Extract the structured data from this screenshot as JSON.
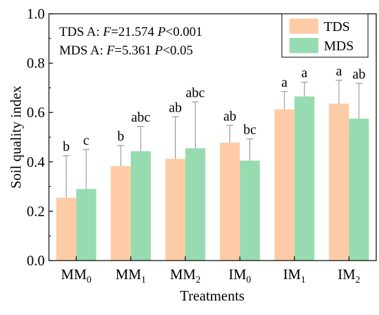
{
  "chart_data": {
    "type": "bar",
    "xlabel": "Treatments",
    "ylabel": "Soil quality index",
    "ylim": [
      0,
      1.0
    ],
    "yticks": [
      "0.0",
      "0.2",
      "0.4",
      "0.6",
      "0.8",
      "1.0"
    ],
    "categories": [
      {
        "base": "MM",
        "sub": "0"
      },
      {
        "base": "MM",
        "sub": "1"
      },
      {
        "base": "MM",
        "sub": "2"
      },
      {
        "base": "IM",
        "sub": "0"
      },
      {
        "base": "IM",
        "sub": "1"
      },
      {
        "base": "IM",
        "sub": "2"
      }
    ],
    "series": [
      {
        "name": "TDS",
        "color": "#FDCCA6",
        "values": [
          0.255,
          0.383,
          0.412,
          0.478,
          0.613,
          0.636
        ],
        "errors": [
          0.17,
          0.083,
          0.17,
          0.07,
          0.072,
          0.095
        ],
        "letters": [
          "b",
          "b",
          "ab",
          "ab",
          "a",
          "a"
        ]
      },
      {
        "name": "MDS",
        "color": "#97DCB0",
        "values": [
          0.29,
          0.443,
          0.455,
          0.405,
          0.665,
          0.575
        ],
        "errors": [
          0.16,
          0.1,
          0.188,
          0.088,
          0.058,
          0.143
        ],
        "letters": [
          "c",
          "abc",
          "abc",
          "bc",
          "a",
          "ab"
        ]
      }
    ],
    "annotations": [
      {
        "label": "TDS",
        "factor": "A:",
        "stat": "F",
        "stat_value": "=21.574",
        "p_label": "P",
        "p_value": "<0.001"
      },
      {
        "label": "MDS",
        "factor": "A:",
        "stat": "F",
        "stat_value": "=5.361",
        "p_label": "P",
        "p_value": "<0.05"
      }
    ],
    "legend_position": "top-right",
    "grid": false
  }
}
